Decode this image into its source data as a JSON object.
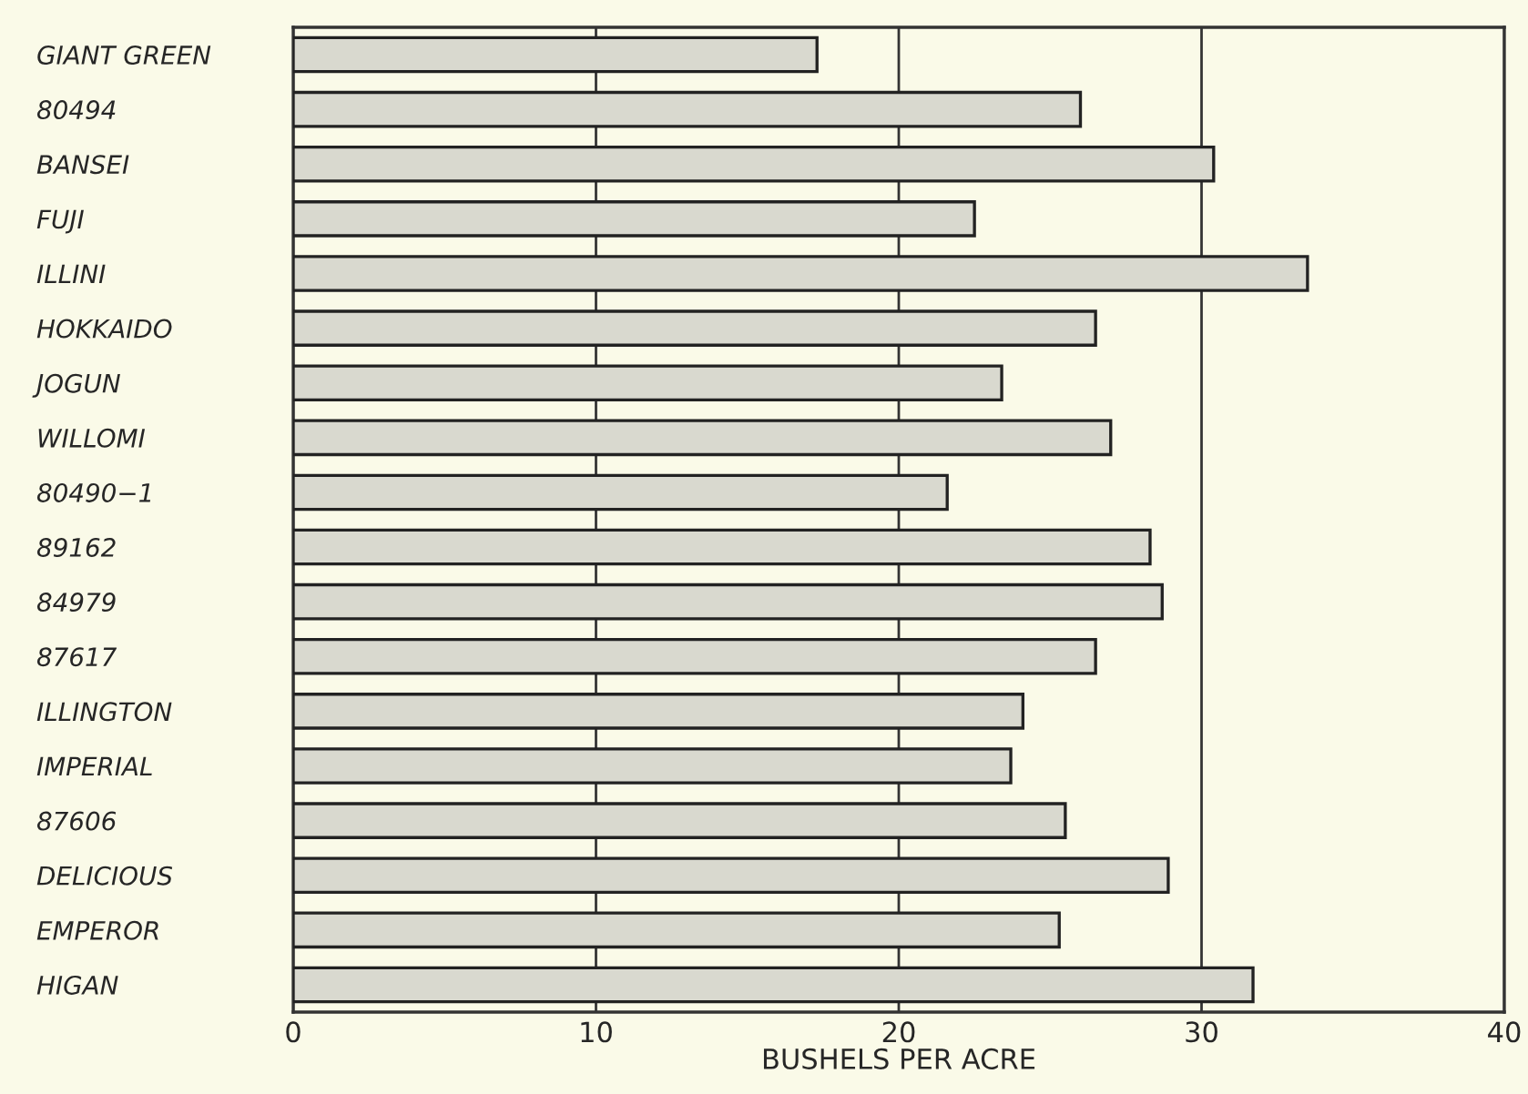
{
  "chart_data": {
    "type": "bar",
    "orientation": "horizontal",
    "xlabel": "BUSHELS PER ACRE",
    "categories": [
      "GIANT GREEN",
      "80494",
      "BANSEI",
      "FUJI",
      "ILLINI",
      "HOKKAIDO",
      "JOGUN",
      "WILLOMI",
      "80490−1",
      "89162",
      "84979",
      "87617",
      "ILLINGTON",
      "IMPERIAL",
      "87606",
      "DELICIOUS",
      "EMPEROR",
      "HIGAN"
    ],
    "values": [
      17.3,
      26.0,
      30.4,
      22.5,
      33.5,
      26.5,
      23.4,
      27.0,
      21.6,
      28.3,
      28.7,
      26.5,
      24.1,
      23.7,
      25.5,
      28.9,
      25.3,
      31.7
    ],
    "color": "#d9d9cf",
    "xlim": [
      0,
      40
    ],
    "xticks": [
      0,
      10,
      20,
      30,
      40
    ],
    "grid": "x"
  }
}
